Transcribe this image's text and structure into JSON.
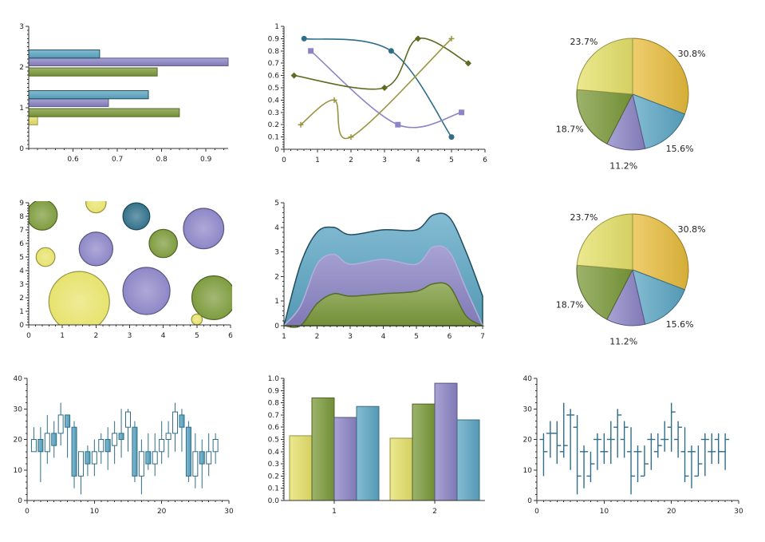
{
  "colors": {
    "teal": "#2e6e88",
    "teal_light": "#5ba6c4",
    "purple": "#8b84c6",
    "green": "#7b9a3a",
    "olive": "#5e6b22",
    "khaki": "#9a9440",
    "yellow": "#e6e26a",
    "gold": "#e8bc3c"
  },
  "chart_data": [
    {
      "id": "hbar",
      "type": "bar",
      "orientation": "horizontal",
      "categories": [
        0,
        1,
        2
      ],
      "series": [
        {
          "values": [
            0.52,
            0.84,
            0.79
          ]
        },
        {
          "values": [
            null,
            0.68,
            0.95
          ]
        },
        {
          "values": [
            null,
            0.77,
            0.66
          ]
        }
      ],
      "xlim": [
        0.5,
        0.95
      ],
      "ylim": [
        0,
        3
      ],
      "xticks": [
        "0.6",
        "0.7",
        "0.8",
        "0.9"
      ],
      "yticks": [
        "0",
        "1",
        "2",
        "3"
      ]
    },
    {
      "id": "spline",
      "type": "line",
      "series": [
        {
          "marker": "circle",
          "x": [
            0.6,
            3.2,
            5.0
          ],
          "y": [
            0.9,
            0.8,
            0.1
          ]
        },
        {
          "marker": "square",
          "x": [
            0.8,
            3.4,
            5.3
          ],
          "y": [
            0.8,
            0.2,
            0.3
          ]
        },
        {
          "marker": "diamond",
          "x": [
            0.3,
            3.0,
            4.0,
            5.5
          ],
          "y": [
            0.6,
            0.5,
            0.9,
            0.7
          ]
        },
        {
          "marker": "plus",
          "x": [
            0.5,
            1.5,
            2.0,
            5.0
          ],
          "y": [
            0.2,
            0.4,
            0.1,
            0.9
          ]
        }
      ],
      "xlim": [
        0,
        6
      ],
      "ylim": [
        0,
        1
      ],
      "xticks": [
        "0",
        "1",
        "2",
        "3",
        "4",
        "5",
        "6"
      ],
      "yticks": [
        "0",
        "0.1",
        "0.2",
        "0.3",
        "0.4",
        "0.5",
        "0.6",
        "0.7",
        "0.8",
        "0.9",
        "1"
      ]
    },
    {
      "id": "pie1",
      "type": "pie",
      "slices": [
        {
          "label": "30.8%",
          "value": 30.8,
          "color": "gold"
        },
        {
          "label": "15.6%",
          "value": 15.6,
          "color": "teal_light"
        },
        {
          "label": "11.2%",
          "value": 11.2,
          "color": "purple"
        },
        {
          "label": "18.7%",
          "value": 18.7,
          "color": "green"
        },
        {
          "label": "23.7%",
          "value": 23.7,
          "color": "yellow"
        }
      ]
    },
    {
      "id": "bubble",
      "type": "scatter",
      "points": [
        {
          "x": 0.4,
          "y": 8.1,
          "r": 0.45,
          "color": "green"
        },
        {
          "x": 2.0,
          "y": 9.0,
          "r": 0.3,
          "color": "yellow"
        },
        {
          "x": 3.2,
          "y": 8.0,
          "r": 0.4,
          "color": "teal"
        },
        {
          "x": 5.2,
          "y": 7.1,
          "r": 0.6,
          "color": "purple"
        },
        {
          "x": 4.0,
          "y": 6.0,
          "r": 0.42,
          "color": "green"
        },
        {
          "x": 0.5,
          "y": 5.0,
          "r": 0.28,
          "color": "yellow"
        },
        {
          "x": 2.0,
          "y": 5.6,
          "r": 0.5,
          "color": "purple"
        },
        {
          "x": 3.5,
          "y": 2.5,
          "r": 0.7,
          "color": "purple"
        },
        {
          "x": 1.5,
          "y": 1.7,
          "r": 0.9,
          "color": "yellow"
        },
        {
          "x": 5.5,
          "y": 2.0,
          "r": 0.65,
          "color": "green"
        },
        {
          "x": 5.0,
          "y": 0.4,
          "r": 0.16,
          "color": "yellow"
        }
      ],
      "xlim": [
        0,
        6
      ],
      "ylim": [
        0,
        9
      ],
      "xticks": [
        "0",
        "1",
        "2",
        "3",
        "4",
        "5",
        "6"
      ],
      "yticks": [
        "0",
        "1",
        "2",
        "3",
        "4",
        "5",
        "6",
        "7",
        "8",
        "9"
      ]
    },
    {
      "id": "area",
      "type": "area",
      "x": [
        1,
        1.5,
        2,
        2.5,
        3,
        4,
        5,
        5.5,
        6,
        6.5,
        7
      ],
      "series": [
        {
          "color": "teal",
          "values": [
            0,
            2.5,
            3.8,
            4.0,
            3.7,
            3.9,
            3.9,
            4.5,
            4.4,
            3.0,
            1.2
          ]
        },
        {
          "color": "purple",
          "values": [
            0,
            0.8,
            2.5,
            2.9,
            2.5,
            2.7,
            2.5,
            3.2,
            3.0,
            1.5,
            0
          ]
        },
        {
          "color": "green",
          "values": [
            0,
            0,
            0.9,
            1.3,
            1.2,
            1.3,
            1.4,
            1.7,
            1.6,
            0.4,
            0
          ]
        }
      ],
      "xlim": [
        1,
        7
      ],
      "ylim": [
        0,
        5
      ],
      "xticks": [
        "1",
        "2",
        "3",
        "4",
        "5",
        "6",
        "7"
      ],
      "yticks": [
        "0",
        "1",
        "2",
        "3",
        "4",
        "5"
      ]
    },
    {
      "id": "pie2",
      "type": "pie",
      "slices": [
        {
          "label": "30.8%",
          "value": 30.8,
          "color": "gold"
        },
        {
          "label": "15.6%",
          "value": 15.6,
          "color": "teal_light"
        },
        {
          "label": "11.2%",
          "value": 11.2,
          "color": "purple"
        },
        {
          "label": "18.7%",
          "value": 18.7,
          "color": "green"
        },
        {
          "label": "23.7%",
          "value": 23.7,
          "color": "yellow"
        }
      ]
    },
    {
      "id": "candle",
      "type": "candlestick",
      "ohlc": [
        [
          1,
          16,
          24,
          16,
          20
        ],
        [
          2,
          20,
          24,
          6,
          16
        ],
        [
          3,
          16,
          28,
          12,
          22
        ],
        [
          4,
          22,
          26,
          14,
          18
        ],
        [
          5,
          22,
          32,
          18,
          28
        ],
        [
          6,
          28,
          28,
          14,
          24
        ],
        [
          7,
          24,
          26,
          4,
          8
        ],
        [
          8,
          8,
          16,
          2,
          16
        ],
        [
          9,
          16,
          18,
          8,
          12
        ],
        [
          10,
          12,
          20,
          8,
          16
        ],
        [
          11,
          16,
          22,
          12,
          20
        ],
        [
          12,
          20,
          24,
          10,
          16
        ],
        [
          13,
          18,
          26,
          12,
          22
        ],
        [
          14,
          22,
          30,
          14,
          20
        ],
        [
          15,
          24,
          30,
          16,
          29
        ],
        [
          16,
          24,
          26,
          6,
          8
        ],
        [
          17,
          8,
          20,
          2,
          16
        ],
        [
          18,
          16,
          22,
          10,
          12
        ],
        [
          19,
          12,
          22,
          8,
          16
        ],
        [
          20,
          16,
          26,
          12,
          20
        ],
        [
          21,
          20,
          26,
          14,
          22
        ],
        [
          22,
          22,
          32,
          16,
          29
        ],
        [
          23,
          28,
          30,
          16,
          24
        ],
        [
          24,
          24,
          26,
          6,
          8
        ],
        [
          25,
          8,
          22,
          4,
          16
        ],
        [
          26,
          16,
          20,
          4,
          12
        ],
        [
          27,
          12,
          22,
          8,
          16
        ],
        [
          28,
          16,
          22,
          12,
          20
        ]
      ],
      "xlim": [
        0,
        30
      ],
      "ylim": [
        0,
        40
      ],
      "xticks": [
        "0",
        "10",
        "20",
        "30"
      ],
      "yticks": [
        "0",
        "10",
        "20",
        "30",
        "40"
      ]
    },
    {
      "id": "vbar",
      "type": "bar",
      "categories": [
        "1",
        "2"
      ],
      "series": [
        {
          "color": "yellow",
          "values": [
            0.53,
            0.51
          ]
        },
        {
          "color": "green",
          "values": [
            0.84,
            0.79
          ]
        },
        {
          "color": "purple",
          "values": [
            0.68,
            0.96
          ]
        },
        {
          "color": "teal_light",
          "values": [
            0.77,
            0.66
          ]
        }
      ],
      "ylim": [
        0,
        1
      ],
      "yticks": [
        "0.0",
        "0.1",
        "0.2",
        "0.3",
        "0.4",
        "0.5",
        "0.6",
        "0.7",
        "0.8",
        "0.9",
        "1.0"
      ]
    },
    {
      "id": "hloc",
      "type": "hloc",
      "ohlc": [
        [
          1,
          20,
          22,
          8,
          16
        ],
        [
          2,
          22,
          26,
          14,
          22
        ],
        [
          3,
          22,
          26,
          12,
          18
        ],
        [
          4,
          16,
          32,
          14,
          18
        ],
        [
          5,
          28,
          30,
          10,
          28
        ],
        [
          6,
          24,
          28,
          2,
          8
        ],
        [
          7,
          16,
          18,
          4,
          16
        ],
        [
          8,
          8,
          16,
          6,
          12
        ],
        [
          9,
          20,
          22,
          10,
          20
        ],
        [
          10,
          16,
          22,
          12,
          16
        ],
        [
          11,
          20,
          26,
          12,
          20
        ],
        [
          12,
          24,
          30,
          14,
          28
        ],
        [
          13,
          20,
          26,
          14,
          24
        ],
        [
          14,
          16,
          24,
          2,
          8
        ],
        [
          15,
          16,
          18,
          6,
          16
        ],
        [
          16,
          8,
          18,
          8,
          12
        ],
        [
          17,
          20,
          22,
          10,
          20
        ],
        [
          18,
          16,
          22,
          14,
          18
        ],
        [
          19,
          20,
          26,
          16,
          20
        ],
        [
          20,
          24,
          32,
          16,
          29
        ],
        [
          21,
          20,
          26,
          14,
          24
        ],
        [
          22,
          16,
          24,
          6,
          8
        ],
        [
          23,
          16,
          18,
          4,
          16
        ],
        [
          24,
          8,
          18,
          8,
          12
        ],
        [
          25,
          20,
          22,
          8,
          20
        ],
        [
          26,
          16,
          22,
          12,
          16
        ],
        [
          27,
          20,
          22,
          12,
          16
        ],
        [
          28,
          16,
          22,
          10,
          20
        ]
      ],
      "xlim": [
        0,
        30
      ],
      "ylim": [
        0,
        40
      ],
      "xticks": [
        "0",
        "10",
        "20",
        "30"
      ],
      "yticks": [
        "0",
        "10",
        "20",
        "30",
        "40"
      ]
    }
  ]
}
